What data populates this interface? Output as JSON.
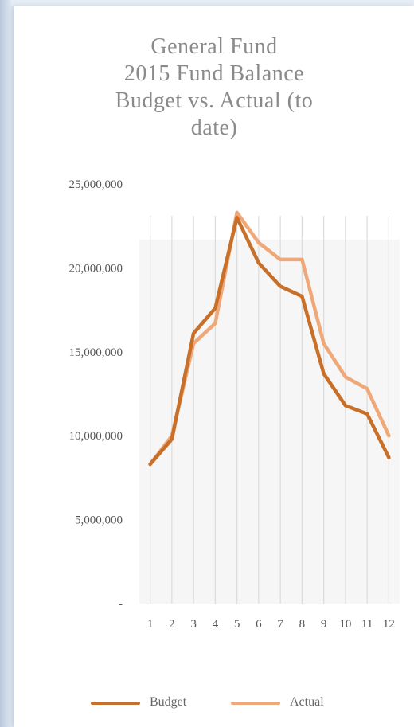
{
  "chart_data": {
    "type": "line",
    "title_lines": [
      "General Fund",
      "2015 Fund Balance",
      "Budget vs. Actual (to",
      "date)"
    ],
    "xlabel": "",
    "ylabel": "",
    "categories": [
      "1",
      "2",
      "3",
      "4",
      "5",
      "6",
      "7",
      "8",
      "9",
      "10",
      "11",
      "12"
    ],
    "ylim": [
      0,
      25000000
    ],
    "y_ticks": [
      0,
      5000000,
      10000000,
      15000000,
      20000000,
      25000000
    ],
    "y_tick_labels": [
      "-",
      "5,000,000",
      "10,000,000",
      "15,000,000",
      "20,000,000",
      "25,000,000"
    ],
    "grid": "vertical lines at each category, light gray",
    "legend_position": "bottom",
    "series": [
      {
        "name": "Budget",
        "color": "#c8702a",
        "values": [
          8300000,
          9800000,
          16100000,
          17600000,
          23000000,
          20300000,
          18900000,
          18300000,
          13700000,
          11800000,
          11300000,
          8700000
        ]
      },
      {
        "name": "Actual",
        "color": "#f0a878",
        "values": [
          8300000,
          10000000,
          15500000,
          16700000,
          23300000,
          21500000,
          20500000,
          20500000,
          15500000,
          13500000,
          12800000,
          10000000
        ]
      }
    ]
  }
}
